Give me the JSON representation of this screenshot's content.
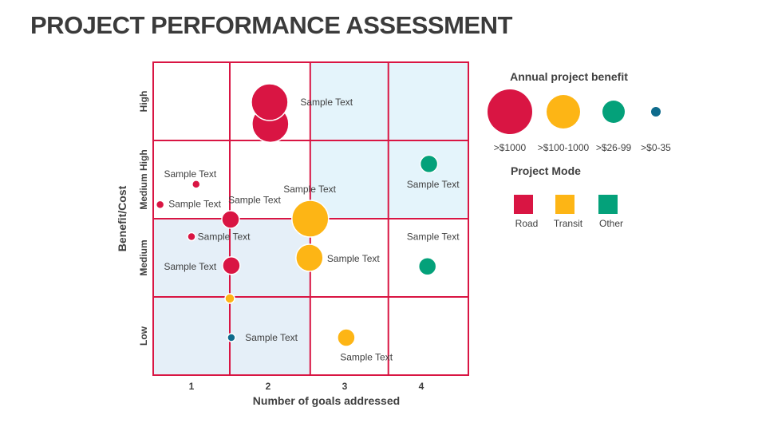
{
  "title": "PROJECT PERFORMANCE ASSESSMENT",
  "chart_data": {
    "type": "scatter",
    "subtype": "bubble",
    "xlabel": "Number of goals addressed",
    "ylabel": "Benefit/Cost",
    "xlim": [
      0.5,
      4.6
    ],
    "ylim": [
      0,
      4
    ],
    "x_ticks": [
      {
        "value": 1,
        "label": "1"
      },
      {
        "value": 2,
        "label": "2"
      },
      {
        "value": 3,
        "label": "3"
      },
      {
        "value": 4,
        "label": "4"
      }
    ],
    "y_categories": [
      "Low",
      "Medium",
      "Medium High",
      "High"
    ],
    "grid_x": [
      1.5,
      2.55,
      3.57
    ],
    "grid_y": [
      1,
      2,
      3
    ],
    "colors": {
      "Road": "#D91543",
      "Transit": "#FDB515",
      "Other": "#04A17A",
      "Small": "#0E6B8C",
      "grid": "#D91543"
    },
    "size_legend_title": "Annual project benefit",
    "size_legend": [
      {
        "label": ">$1000",
        "size": 4,
        "color": "#D91543"
      },
      {
        "label": ">$100-1000",
        "size": 3,
        "color": "#FDB515"
      },
      {
        "label": ">$26-99",
        "size": 2,
        "color": "#04A17A"
      },
      {
        "label": ">$0-35",
        "size": 1,
        "color": "#0E6B8C"
      }
    ],
    "mode_legend_title": "Project Mode",
    "mode_legend": [
      {
        "label": "Road",
        "color": "#D91543"
      },
      {
        "label": "Transit",
        "color": "#FDB515"
      },
      {
        "label": "Other",
        "color": "#04A17A"
      }
    ],
    "points": [
      {
        "x": 2.03,
        "y": 3.21,
        "size": 4,
        "mode": "Road"
      },
      {
        "x": 2.02,
        "y": 3.49,
        "size": 4,
        "mode": "Road"
      },
      {
        "x": 1.06,
        "y": 2.44,
        "size": 1,
        "mode": "Road"
      },
      {
        "x": 0.59,
        "y": 2.18,
        "size": 1,
        "mode": "Road"
      },
      {
        "x": 1.51,
        "y": 1.99,
        "size": 2,
        "mode": "Road"
      },
      {
        "x": 2.55,
        "y": 2.0,
        "size": 4,
        "mode": "Transit"
      },
      {
        "x": 1.0,
        "y": 1.77,
        "size": 1,
        "mode": "Road"
      },
      {
        "x": 1.52,
        "y": 1.4,
        "size": 2,
        "mode": "Road"
      },
      {
        "x": 2.54,
        "y": 1.5,
        "size": 3,
        "mode": "Transit"
      },
      {
        "x": 1.5,
        "y": 0.98,
        "size": 1.2,
        "mode": "Transit"
      },
      {
        "x": 1.52,
        "y": 0.48,
        "size": 1,
        "mode": "Small"
      },
      {
        "x": 3.02,
        "y": 0.48,
        "size": 2,
        "mode": "Transit"
      },
      {
        "x": 4.1,
        "y": 2.7,
        "size": 2,
        "mode": "Other"
      },
      {
        "x": 4.08,
        "y": 1.39,
        "size": 2,
        "mode": "Other"
      }
    ],
    "annotations": [
      {
        "text": "Sample Text",
        "x": 2.42,
        "y": 3.49
      },
      {
        "text": "Sample Text",
        "x": 0.64,
        "y": 2.57
      },
      {
        "text": "Sample Text",
        "x": 0.7,
        "y": 2.19
      },
      {
        "text": "Sample Text",
        "x": 1.48,
        "y": 2.24
      },
      {
        "text": "Sample Text",
        "x": 2.2,
        "y": 2.38
      },
      {
        "text": "Sample Text",
        "x": 1.08,
        "y": 1.77
      },
      {
        "text": "Sample Text",
        "x": 0.64,
        "y": 1.39
      },
      {
        "text": "Sample Text",
        "x": 2.77,
        "y": 1.49
      },
      {
        "text": "Sample Text",
        "x": 1.7,
        "y": 0.48
      },
      {
        "text": "Sample Text",
        "x": 2.94,
        "y": 0.23
      },
      {
        "text": "Sample Text",
        "x": 3.81,
        "y": 2.44
      },
      {
        "text": "Sample Text",
        "x": 3.81,
        "y": 1.77
      }
    ]
  }
}
